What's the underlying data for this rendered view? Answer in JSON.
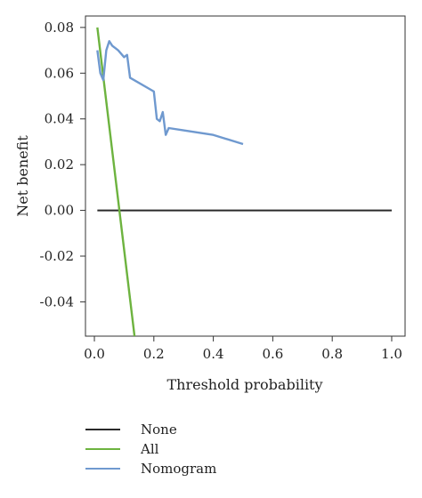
{
  "chart_data": {
    "type": "line",
    "title": "",
    "xlabel": "Threshold probability",
    "ylabel": "Net benefit",
    "xlim": [
      -0.03,
      1.045
    ],
    "ylim": [
      -0.055,
      0.085
    ],
    "x_ticks": [
      0.0,
      0.2,
      0.4,
      0.6,
      0.8,
      1.0
    ],
    "x_tick_labels": [
      "0.0",
      "0.2",
      "0.4",
      "0.6",
      "0.8",
      "1.0"
    ],
    "y_ticks": [
      0.08,
      0.06,
      0.04,
      0.02,
      0.0,
      -0.02,
      -0.04
    ],
    "y_tick_labels": [
      "0.08",
      "0.06",
      "0.04",
      "0.02",
      "0.00",
      "-0.02",
      "-0.04"
    ],
    "grid": false,
    "legend_position": "below-left",
    "series": [
      {
        "name": "None",
        "color": "#2a2a2a",
        "x": [
          0.01,
          1.0
        ],
        "y": [
          0.0,
          0.0
        ]
      },
      {
        "name": "All",
        "color": "#6db33f",
        "x": [
          0.01,
          0.135
        ],
        "y": [
          0.08,
          -0.055
        ]
      },
      {
        "name": "Nomogram",
        "color": "#6f99cf",
        "x": [
          0.01,
          0.02,
          0.03,
          0.04,
          0.05,
          0.06,
          0.08,
          0.1,
          0.11,
          0.12,
          0.2,
          0.21,
          0.22,
          0.23,
          0.24,
          0.25,
          0.3,
          0.4,
          0.5
        ],
        "y": [
          0.07,
          0.06,
          0.057,
          0.07,
          0.074,
          0.072,
          0.07,
          0.067,
          0.068,
          0.058,
          0.052,
          0.04,
          0.039,
          0.043,
          0.033,
          0.036,
          0.035,
          0.033,
          0.029
        ]
      }
    ]
  }
}
